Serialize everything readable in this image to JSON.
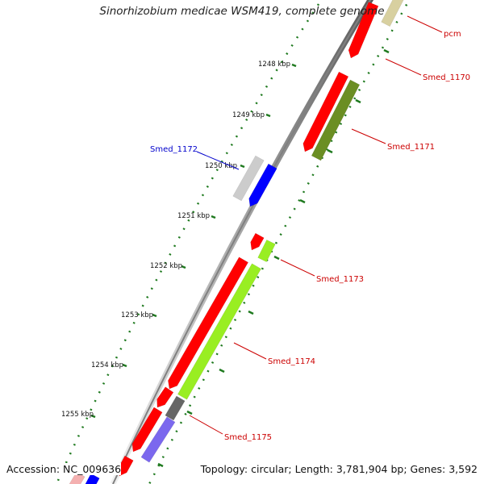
{
  "title": "Sinorhizobium medicae WSM419, complete genome",
  "footer": {
    "accession": "Accession: NC_009636",
    "summary": "Topology: circular; Length: 3,781,904 bp; Genes: 3,592"
  },
  "colors": {
    "forward_strand": "#ff0000",
    "reverse_strand": "#0000ff",
    "label_forward": "#cc0000",
    "label_reverse": "#0000cc",
    "backbone": "#808080",
    "tick_green": "#1f7a1f",
    "gene_olive": "#6b8e23",
    "gene_lime": "#99ee22",
    "gene_grey": "#666666",
    "gene_slate": "#7b68ee",
    "gene_silver": "#cccccc",
    "gene_khaki": "#d8d0a0"
  },
  "scale_labels": [
    "1248 kbp",
    "1249 kbp",
    "1250 kbp",
    "1251 kbp",
    "1252 kbp",
    "1253 kbp",
    "1254 kbp",
    "1255 kbp"
  ],
  "gene_labels": [
    {
      "name": "pcm",
      "strand": "forward"
    },
    {
      "name": "Smed_1170",
      "strand": "forward"
    },
    {
      "name": "Smed_1171",
      "strand": "forward"
    },
    {
      "name": "Smed_1172",
      "strand": "reverse"
    },
    {
      "name": "Smed_1173",
      "strand": "forward"
    },
    {
      "name": "Smed_1174",
      "strand": "forward"
    },
    {
      "name": "Smed_1175",
      "strand": "forward"
    }
  ]
}
